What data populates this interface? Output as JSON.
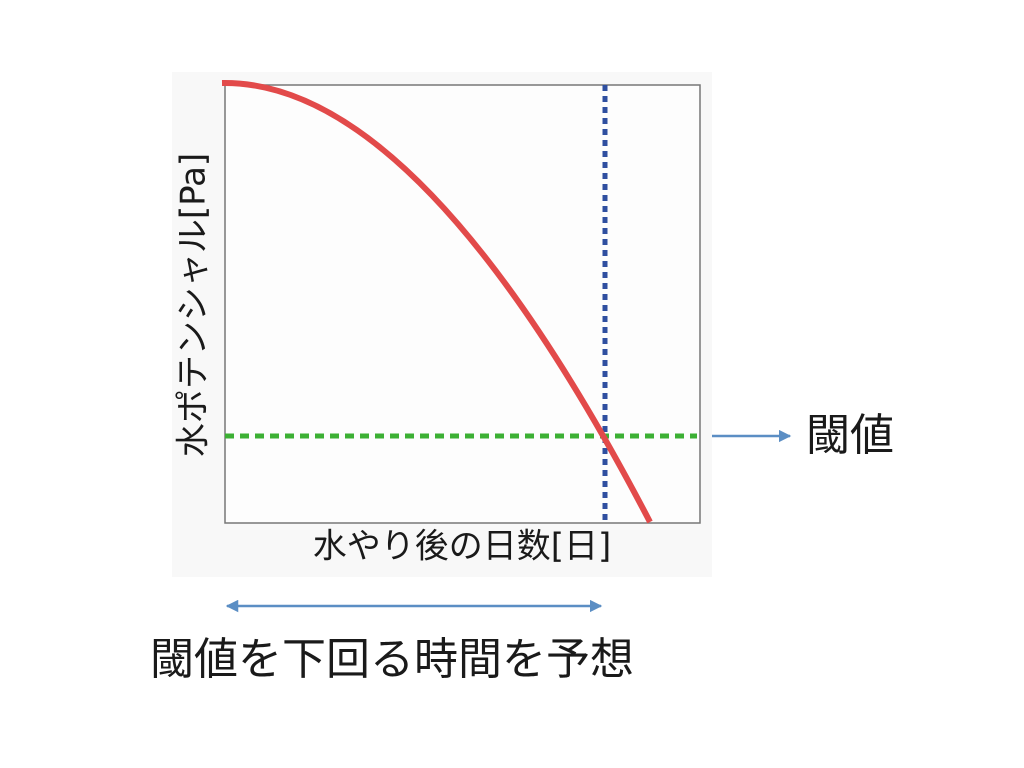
{
  "y_axis_label": "水ポテンシャル[Pa]",
  "x_axis_label": "水やり後の日数[日]",
  "threshold_label": "閾値",
  "caption": "閾値を下回る時間を予想"
}
